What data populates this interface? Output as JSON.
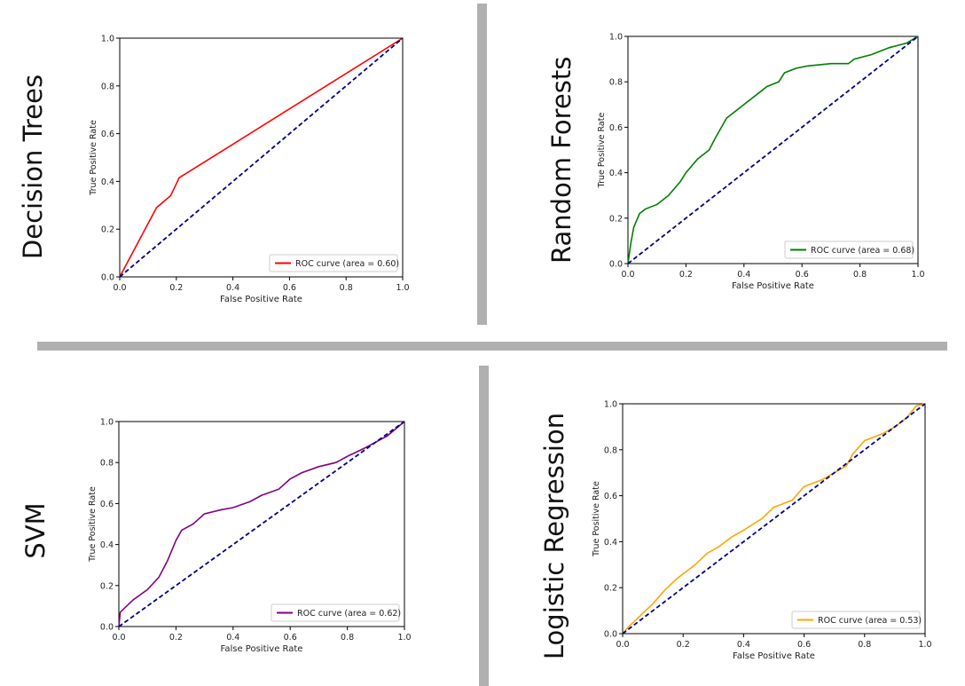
{
  "layout_labels": {
    "q1": "Decision Trees",
    "q2": "Random Forests",
    "q3": "SVM",
    "q4": "Logistic Regression"
  },
  "chart_data": [
    {
      "id": "decision-trees",
      "type": "line",
      "xlabel": "False Positive Rate",
      "ylabel": "True Positive Rate",
      "xlim": [
        0,
        1
      ],
      "ylim": [
        0,
        1
      ],
      "xticks": [
        "0.0",
        "0.2",
        "0.4",
        "0.6",
        "0.8",
        "1.0"
      ],
      "yticks": [
        "0.0",
        "0.2",
        "0.4",
        "0.6",
        "0.8",
        "1.0"
      ],
      "series": [
        {
          "name": "ROC curve (area = 0.60)",
          "color": "#ff0000",
          "x": [
            0,
            0.13,
            0.18,
            0.2,
            0.21,
            1.0
          ],
          "y": [
            0,
            0.29,
            0.34,
            0.39,
            0.415,
            1.0
          ]
        },
        {
          "name": "chance",
          "color": "#000080",
          "dashed": true,
          "x": [
            0,
            1
          ],
          "y": [
            0,
            1
          ]
        }
      ],
      "legend": "ROC curve (area = 0.60)",
      "legend_loc": "lower-right"
    },
    {
      "id": "random-forests",
      "type": "line",
      "xlabel": "False Positive Rate",
      "ylabel": "True Positive Rate",
      "xlim": [
        0,
        1
      ],
      "ylim": [
        0,
        1
      ],
      "xticks": [
        "0.0",
        "0.2",
        "0.4",
        "0.6",
        "0.8",
        "1.0"
      ],
      "yticks": [
        "0.0",
        "0.2",
        "0.4",
        "0.6",
        "0.8",
        "1.0"
      ],
      "series": [
        {
          "name": "ROC curve (area = 0.68)",
          "color": "#008000",
          "x": [
            0,
            0.01,
            0.02,
            0.04,
            0.06,
            0.1,
            0.14,
            0.18,
            0.2,
            0.24,
            0.28,
            0.3,
            0.34,
            0.36,
            0.4,
            0.44,
            0.48,
            0.52,
            0.54,
            0.58,
            0.62,
            0.7,
            0.76,
            0.78,
            0.84,
            0.9,
            0.96,
            1.0
          ],
          "y": [
            0,
            0.09,
            0.16,
            0.22,
            0.24,
            0.26,
            0.3,
            0.36,
            0.4,
            0.46,
            0.5,
            0.55,
            0.64,
            0.66,
            0.7,
            0.74,
            0.78,
            0.8,
            0.84,
            0.86,
            0.87,
            0.88,
            0.88,
            0.9,
            0.92,
            0.95,
            0.97,
            1.0
          ]
        },
        {
          "name": "chance",
          "color": "#000080",
          "dashed": true,
          "x": [
            0,
            1
          ],
          "y": [
            0,
            1
          ]
        }
      ],
      "legend": "ROC curve (area = 0.68)",
      "legend_loc": "lower-right"
    },
    {
      "id": "svm",
      "type": "line",
      "xlabel": "False Positive Rate",
      "ylabel": "True Positive Rate",
      "xlim": [
        0,
        1
      ],
      "ylim": [
        0,
        1
      ],
      "xticks": [
        "0.0",
        "0.2",
        "0.4",
        "0.6",
        "0.8",
        "1.0"
      ],
      "yticks": [
        "0.0",
        "0.2",
        "0.4",
        "0.6",
        "0.8",
        "1.0"
      ],
      "series": [
        {
          "name": "ROC curve (area = 0.62)",
          "color": "#800080",
          "x": [
            0,
            0.005,
            0.02,
            0.05,
            0.1,
            0.14,
            0.17,
            0.2,
            0.22,
            0.26,
            0.3,
            0.36,
            0.4,
            0.46,
            0.5,
            0.56,
            0.6,
            0.64,
            0.7,
            0.76,
            0.8,
            0.86,
            0.9,
            0.94,
            1.0
          ],
          "y": [
            0,
            0.07,
            0.09,
            0.13,
            0.18,
            0.24,
            0.32,
            0.42,
            0.47,
            0.5,
            0.55,
            0.57,
            0.58,
            0.61,
            0.64,
            0.67,
            0.72,
            0.75,
            0.78,
            0.8,
            0.83,
            0.87,
            0.9,
            0.93,
            1.0
          ]
        },
        {
          "name": "chance",
          "color": "#000080",
          "dashed": true,
          "x": [
            0,
            1
          ],
          "y": [
            0,
            1
          ]
        }
      ],
      "legend": "ROC curve (area = 0.62)",
      "legend_loc": "lower-right"
    },
    {
      "id": "logistic-regression",
      "type": "line",
      "xlabel": "False Positive Rate",
      "ylabel": "True Positive Rate",
      "xlim": [
        0,
        1
      ],
      "ylim": [
        0,
        1
      ],
      "xticks": [
        "0.0",
        "0.2",
        "0.4",
        "0.6",
        "0.8",
        "1.0"
      ],
      "yticks": [
        "0.0",
        "0.2",
        "0.4",
        "0.6",
        "0.8",
        "1.0"
      ],
      "series": [
        {
          "name": "ROC curve (area = 0.53)",
          "color": "#ffa500",
          "x": [
            0,
            0.02,
            0.06,
            0.1,
            0.14,
            0.18,
            0.2,
            0.24,
            0.28,
            0.32,
            0.36,
            0.4,
            0.46,
            0.5,
            0.56,
            0.6,
            0.66,
            0.7,
            0.74,
            0.76,
            0.8,
            0.86,
            0.9,
            0.94,
            0.97,
            1.0
          ],
          "y": [
            0,
            0.03,
            0.08,
            0.13,
            0.19,
            0.24,
            0.26,
            0.3,
            0.35,
            0.38,
            0.42,
            0.45,
            0.5,
            0.55,
            0.58,
            0.64,
            0.67,
            0.7,
            0.73,
            0.78,
            0.84,
            0.87,
            0.9,
            0.94,
            0.99,
            1.0
          ]
        },
        {
          "name": "chance",
          "color": "#000080",
          "dashed": true,
          "x": [
            0,
            1
          ],
          "y": [
            0,
            1
          ]
        }
      ],
      "legend": "ROC curve (area = 0.53)",
      "legend_loc": "lower-right"
    }
  ]
}
